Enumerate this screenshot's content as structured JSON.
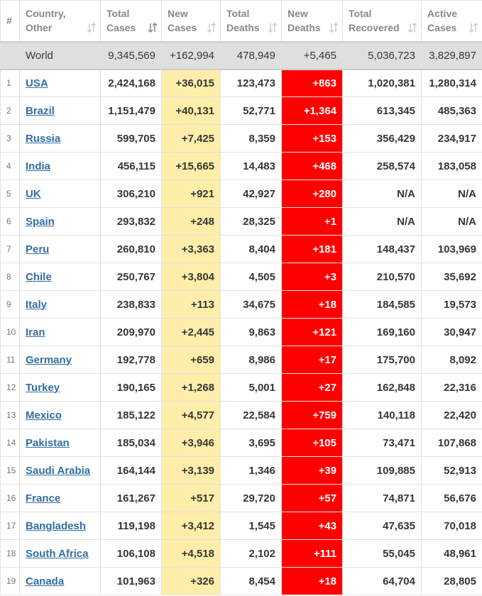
{
  "header": [
    [
      "#"
    ],
    [
      "Country,",
      "Other"
    ],
    [
      "Total",
      "Cases"
    ],
    [
      "New",
      "Cases"
    ],
    [
      "Total",
      "Deaths"
    ],
    [
      "New",
      "Deaths"
    ],
    [
      "Total",
      "Recovered"
    ],
    [
      "Active",
      "Cases"
    ]
  ],
  "world": [
    "World",
    "9,345,569",
    "+162,994",
    "478,949",
    "+5,465",
    "5,036,723",
    "3,829,897"
  ],
  "rows": [
    [
      "1",
      "USA",
      "2,424,168",
      "+36,015",
      "123,473",
      "+863",
      "1,020,381",
      "1,280,314"
    ],
    [
      "2",
      "Brazil",
      "1,151,479",
      "+40,131",
      "52,771",
      "+1,364",
      "613,345",
      "485,363"
    ],
    [
      "3",
      "Russia",
      "599,705",
      "+7,425",
      "8,359",
      "+153",
      "356,429",
      "234,917"
    ],
    [
      "4",
      "India",
      "456,115",
      "+15,665",
      "14,483",
      "+468",
      "258,574",
      "183,058"
    ],
    [
      "5",
      "UK",
      "306,210",
      "+921",
      "42,927",
      "+280",
      "N/A",
      "N/A"
    ],
    [
      "6",
      "Spain",
      "293,832",
      "+248",
      "28,325",
      "+1",
      "N/A",
      "N/A"
    ],
    [
      "7",
      "Peru",
      "260,810",
      "+3,363",
      "8,404",
      "+181",
      "148,437",
      "103,969"
    ],
    [
      "8",
      "Chile",
      "250,767",
      "+3,804",
      "4,505",
      "+3",
      "210,570",
      "35,692"
    ],
    [
      "9",
      "Italy",
      "238,833",
      "+113",
      "34,675",
      "+18",
      "184,585",
      "19,573"
    ],
    [
      "10",
      "Iran",
      "209,970",
      "+2,445",
      "9,863",
      "+121",
      "169,160",
      "30,947"
    ],
    [
      "11",
      "Germany",
      "192,778",
      "+659",
      "8,986",
      "+17",
      "175,700",
      "8,092"
    ],
    [
      "12",
      "Turkey",
      "190,165",
      "+1,268",
      "5,001",
      "+27",
      "162,848",
      "22,316"
    ],
    [
      "13",
      "Mexico",
      "185,122",
      "+4,577",
      "22,584",
      "+759",
      "140,118",
      "22,420"
    ],
    [
      "14",
      "Pakistan",
      "185,034",
      "+3,946",
      "3,695",
      "+105",
      "73,471",
      "107,868"
    ],
    [
      "15",
      "Saudi Arabia",
      "164,144",
      "+3,139",
      "1,346",
      "+39",
      "109,885",
      "52,913"
    ],
    [
      "16",
      "France",
      "161,267",
      "+517",
      "29,720",
      "+57",
      "74,871",
      "56,676"
    ],
    [
      "17",
      "Bangladesh",
      "119,198",
      "+3,412",
      "1,545",
      "+43",
      "47,635",
      "70,018"
    ],
    [
      "18",
      "South Africa",
      "106,108",
      "+4,518",
      "2,102",
      "+111",
      "55,045",
      "48,961"
    ],
    [
      "19",
      "Canada",
      "101,963",
      "+326",
      "8,454",
      "+18",
      "64,704",
      "28,805"
    ]
  ]
}
